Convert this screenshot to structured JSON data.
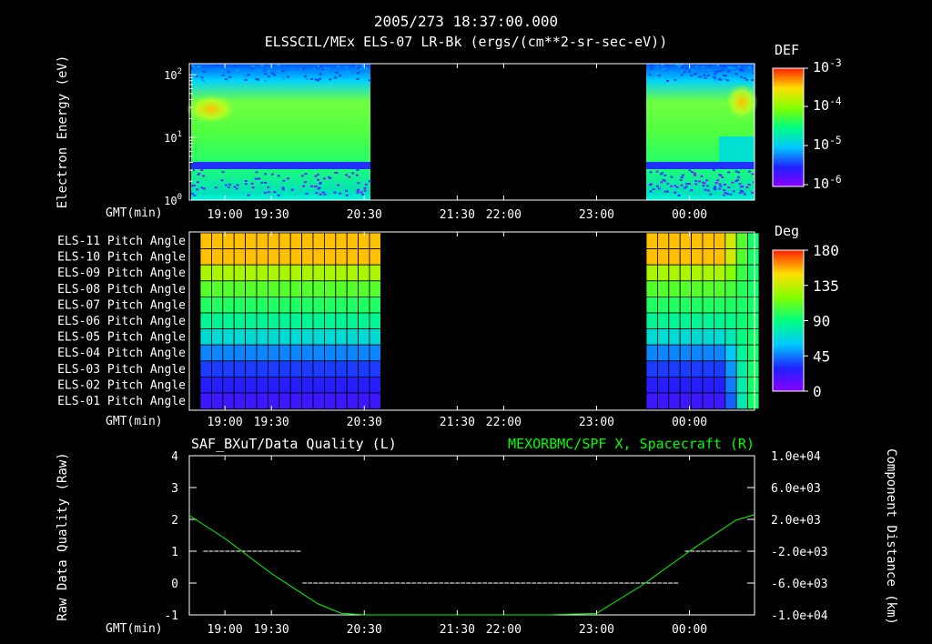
{
  "header": {
    "timestamp": "2005/273 18:37:00.000",
    "subtitle": "ELSSCIL/MEx ELS-07 LR-Bk  (ergs/(cm**2-sr-sec-eV))"
  },
  "colors": {
    "background": "#000000",
    "axes": "#ffffff",
    "right_series": "#00ff00",
    "quality_line": "#ffffff"
  },
  "chart_data": [
    {
      "type": "heatmap",
      "id": "energy_spectrogram",
      "ylabel": "Electron Energy (eV)",
      "y_scale": "log",
      "ylim": [
        1,
        150
      ],
      "y_ticks": [
        "10^0",
        "10^1",
        "10^2"
      ],
      "x_label": "GMT(min)",
      "x_ticks": [
        "19:00",
        "19:30",
        "20:30",
        "21:30",
        "22:00",
        "23:00",
        "00:00"
      ],
      "data_segments": [
        {
          "start": "18:46",
          "end": "20:34"
        },
        {
          "start": "23:27",
          "end": "00:30"
        }
      ],
      "data_gap": {
        "start": "20:34",
        "end": "23:27"
      },
      "colorbar": {
        "label": "DEF",
        "scale": "log",
        "range": [
          1e-06,
          0.001
        ],
        "ticks": [
          "10^-3",
          "10^-4",
          "10^-5",
          "10^-6"
        ]
      }
    },
    {
      "type": "heatmap",
      "id": "pitch_angle",
      "rows": [
        "ELS-11 Pitch Angle",
        "ELS-10 Pitch Angle",
        "ELS-09 Pitch Angle",
        "ELS-08 Pitch Angle",
        "ELS-07 Pitch Angle",
        "ELS-06 Pitch Angle",
        "ELS-05 Pitch Angle",
        "ELS-04 Pitch Angle",
        "ELS-03 Pitch Angle",
        "ELS-02 Pitch Angle",
        "ELS-01 Pitch Angle"
      ],
      "row_values_deg": [
        155,
        155,
        130,
        110,
        97,
        85,
        70,
        48,
        35,
        28,
        22
      ],
      "x_label": "GMT(min)",
      "x_ticks": [
        "19:00",
        "19:30",
        "20:30",
        "21:30",
        "22:00",
        "23:00",
        "00:00"
      ],
      "colorbar": {
        "label": "Deg",
        "range": [
          0,
          180
        ],
        "ticks": [
          "180",
          "135",
          "90",
          "45",
          "0"
        ]
      }
    },
    {
      "type": "line",
      "id": "quality_and_position",
      "left_title": "SAF_BXuT/Data Quality (L)",
      "right_title": "MEXORBMC/SPF X, Spacecraft (R)",
      "left_ylabel": "Raw Data Quality (Raw)",
      "right_ylabel": "Component Distance (km)",
      "left_ylim": [
        -1,
        4
      ],
      "left_ticks": [
        "4",
        "3",
        "2",
        "1",
        "0",
        "-1"
      ],
      "right_ylim": [
        -10000,
        10000
      ],
      "right_ticks": [
        "1.0e+04",
        "6.0e+03",
        "2.0e+03",
        "-2.0e+03",
        "-6.0e+03",
        "-1.0e+04"
      ],
      "x_label": "GMT(min)",
      "x_ticks": [
        "19:00",
        "19:30",
        "20:30",
        "21:30",
        "22:00",
        "23:00",
        "00:00"
      ],
      "quality_series": [
        {
          "start": "18:46",
          "end": "19:49",
          "value": 1
        },
        {
          "start": "19:50",
          "end": "23:53",
          "value": 0
        },
        {
          "start": "23:57",
          "end": "00:33",
          "value": 1
        }
      ],
      "position_series": {
        "x": [
          "18:37",
          "19:00",
          "19:30",
          "20:00",
          "20:15",
          "20:30",
          "21:30",
          "22:00",
          "22:30",
          "23:00",
          "23:30",
          "00:00",
          "00:30",
          "00:42"
        ],
        "y": [
          2500,
          -400,
          -4800,
          -8600,
          -9800,
          -10200,
          -10200,
          -10200,
          -10200,
          -9800,
          -6200,
          -2000,
          1900,
          2600
        ]
      }
    }
  ]
}
